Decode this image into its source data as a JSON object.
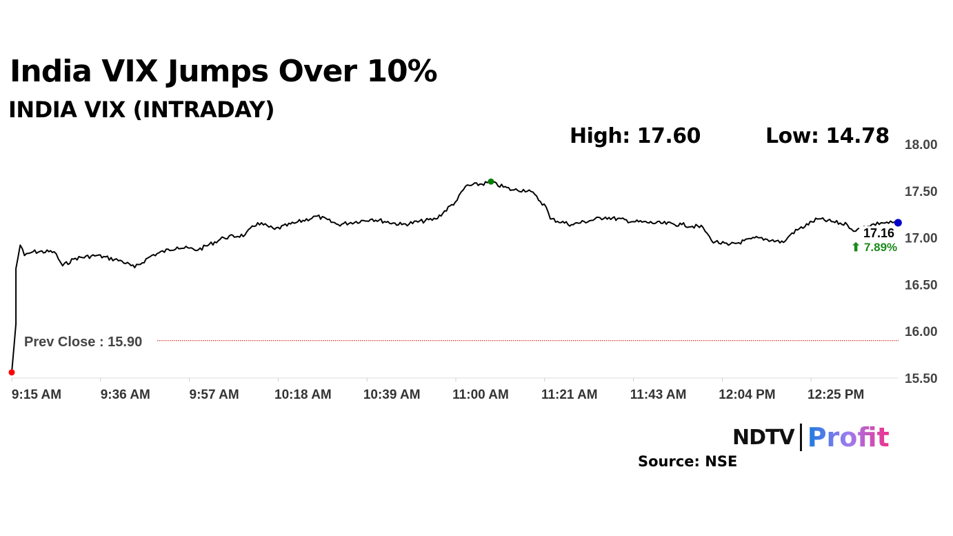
{
  "title": "India VIX Jumps Over 10%",
  "subtitle": "INDIA VIX (INTRADAY)",
  "high_label": "High: 17.60",
  "low_label": "Low: 14.78",
  "source": "Source: NSE",
  "logo": {
    "left": "NDTV",
    "right": "Profit"
  },
  "chart_data": {
    "type": "line",
    "ylim": [
      15.5,
      18.0
    ],
    "yticks": [
      "18.00",
      "17.50",
      "17.00",
      "16.50",
      "16.00",
      "15.50"
    ],
    "xticks": [
      "9:15 AM",
      "9:36 AM",
      "9:57 AM",
      "10:18 AM",
      "10:39 AM",
      "11:00 AM",
      "11:21 AM",
      "11:43 AM",
      "12:04 PM",
      "12:25 PM"
    ],
    "grid": false,
    "series": [
      {
        "color": "#000000",
        "points": [
          [
            "9:15",
            15.56
          ],
          [
            "9:16",
            16.08
          ],
          [
            "9:16",
            16.67
          ],
          [
            "9:17",
            16.92
          ],
          [
            "9:18",
            16.81
          ],
          [
            "9:20",
            16.85
          ],
          [
            "9:25",
            16.85
          ],
          [
            "9:27",
            16.7
          ],
          [
            "9:30",
            16.78
          ],
          [
            "9:35",
            16.81
          ],
          [
            "9:41",
            16.75
          ],
          [
            "9:44",
            16.68
          ],
          [
            "9:48",
            16.81
          ],
          [
            "9:54",
            16.9
          ],
          [
            "9:59",
            16.87
          ],
          [
            "10:05",
            17.0
          ],
          [
            "10:10",
            17.03
          ],
          [
            "10:13",
            17.16
          ],
          [
            "10:17",
            17.09
          ],
          [
            "10:22",
            17.16
          ],
          [
            "10:27",
            17.23
          ],
          [
            "10:32",
            17.14
          ],
          [
            "10:40",
            17.2
          ],
          [
            "10:47",
            17.14
          ],
          [
            "10:55",
            17.2
          ],
          [
            "11:00",
            17.4
          ],
          [
            "11:02",
            17.55
          ],
          [
            "11:08",
            17.59
          ],
          [
            "11:13",
            17.51
          ],
          [
            "11:17",
            17.51
          ],
          [
            "11:21",
            17.33
          ],
          [
            "11:22",
            17.2
          ],
          [
            "11:27",
            17.14
          ],
          [
            "11:35",
            17.22
          ],
          [
            "11:42",
            17.17
          ],
          [
            "11:53",
            17.14
          ],
          [
            "11:58",
            17.11
          ],
          [
            "12:00",
            16.97
          ],
          [
            "12:04",
            16.92
          ],
          [
            "12:11",
            17.0
          ],
          [
            "12:17",
            16.95
          ],
          [
            "12:19",
            17.05
          ],
          [
            "12:25",
            17.2
          ],
          [
            "12:32",
            17.14
          ],
          [
            "12:34",
            17.07
          ],
          [
            "12:36",
            17.12
          ],
          [
            "12:40",
            17.16
          ],
          [
            "12:44",
            17.16
          ]
        ]
      }
    ],
    "prev_close": {
      "label": "Prev Close : 15.90",
      "value": 15.9,
      "color": "#cc0000"
    },
    "markers": [
      {
        "name": "open",
        "time": "9:15",
        "value": 15.56,
        "color": "#ff0000"
      },
      {
        "name": "high",
        "time": "11:08",
        "value": 17.6,
        "color": "#008000"
      },
      {
        "name": "last",
        "time": "12:44",
        "value": 17.16,
        "color": "#0000cc"
      }
    ],
    "last_value": "17.16",
    "change": "⬆ 7.89%",
    "change_color": "#1a8a1a"
  }
}
